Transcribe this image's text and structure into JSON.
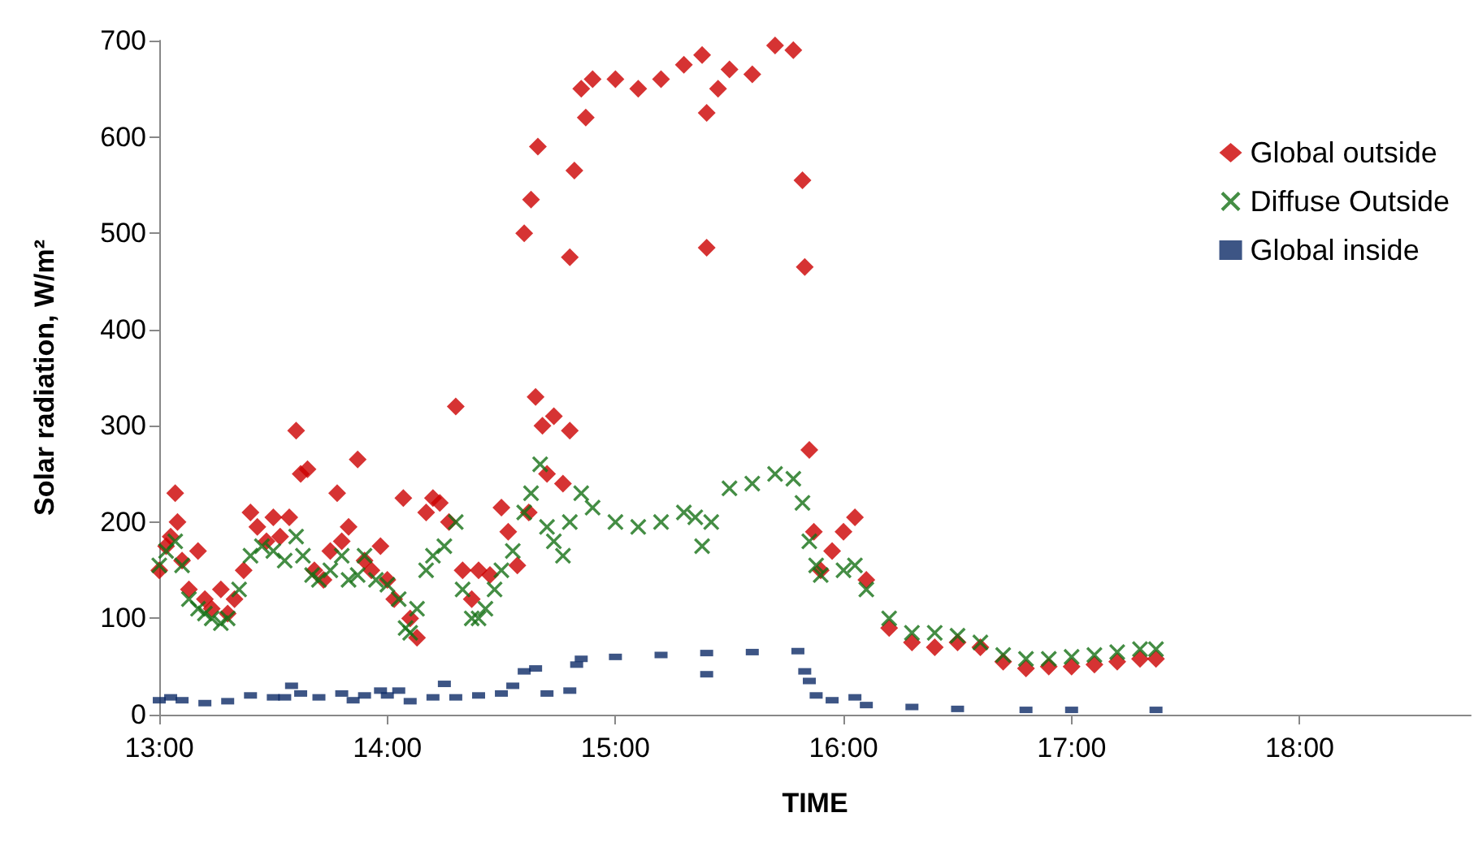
{
  "chart_data": {
    "type": "scatter",
    "xlabel": "TIME",
    "ylabel": "Solar radiation, W/m²",
    "xlim": [
      13,
      18.75
    ],
    "xticks": [
      {
        "value": 13,
        "label": "13:00"
      },
      {
        "value": 14,
        "label": "14:00"
      },
      {
        "value": 15,
        "label": "15:00"
      },
      {
        "value": 16,
        "label": "16:00"
      },
      {
        "value": 17,
        "label": "17:00"
      },
      {
        "value": 18,
        "label": "18:00"
      }
    ],
    "ylim": [
      0,
      700
    ],
    "yticks": [
      0,
      100,
      200,
      300,
      400,
      500,
      600,
      700
    ],
    "grid": false,
    "legend": "right",
    "series": [
      {
        "name": "Global outside",
        "color": "#cc0000",
        "marker": "diamond",
        "x": [
          13.0,
          13.03,
          13.05,
          13.07,
          13.08,
          13.1,
          13.13,
          13.17,
          13.2,
          13.23,
          13.27,
          13.3,
          13.33,
          13.37,
          13.4,
          13.43,
          13.47,
          13.5,
          13.53,
          13.57,
          13.6,
          13.62,
          13.65,
          13.68,
          13.72,
          13.75,
          13.78,
          13.8,
          13.83,
          13.87,
          13.9,
          13.93,
          13.97,
          14.0,
          14.03,
          14.07,
          14.1,
          14.13,
          14.17,
          14.2,
          14.23,
          14.27,
          14.3,
          14.33,
          14.37,
          14.4,
          14.45,
          14.5,
          14.53,
          14.57,
          14.6,
          14.62,
          14.63,
          14.65,
          14.66,
          14.68,
          14.7,
          14.73,
          14.77,
          14.8,
          14.8,
          14.82,
          14.85,
          14.87,
          14.9,
          15.0,
          15.1,
          15.2,
          15.3,
          15.38,
          15.4,
          15.4,
          15.45,
          15.5,
          15.6,
          15.7,
          15.78,
          15.82,
          15.83,
          15.85,
          15.87,
          15.9,
          15.95,
          16.0,
          16.05,
          16.1,
          16.2,
          16.3,
          16.4,
          16.5,
          16.6,
          16.7,
          16.8,
          16.9,
          17.0,
          17.1,
          17.2,
          17.3,
          17.37
        ],
        "values": [
          150,
          175,
          185,
          230,
          200,
          160,
          130,
          170,
          120,
          110,
          130,
          105,
          120,
          150,
          210,
          195,
          180,
          205,
          185,
          205,
          295,
          250,
          255,
          150,
          140,
          170,
          230,
          180,
          195,
          265,
          160,
          150,
          175,
          140,
          120,
          225,
          100,
          80,
          210,
          225,
          220,
          200,
          320,
          150,
          120,
          150,
          145,
          215,
          190,
          155,
          500,
          210,
          535,
          330,
          590,
          300,
          250,
          310,
          240,
          295,
          475,
          565,
          650,
          620,
          660,
          660,
          650,
          660,
          675,
          685,
          625,
          485,
          650,
          670,
          665,
          695,
          690,
          555,
          465,
          275,
          190,
          150,
          170,
          190,
          205,
          140,
          90,
          75,
          70,
          75,
          70,
          55,
          48,
          50,
          50,
          52,
          55,
          58,
          58
        ]
      },
      {
        "name": "Diffuse Outside",
        "color": "#157015",
        "marker": "cross",
        "x": [
          13.0,
          13.03,
          13.07,
          13.1,
          13.13,
          13.17,
          13.2,
          13.23,
          13.27,
          13.3,
          13.35,
          13.4,
          13.45,
          13.5,
          13.55,
          13.6,
          13.63,
          13.67,
          13.7,
          13.75,
          13.8,
          13.83,
          13.87,
          13.9,
          13.95,
          14.0,
          14.05,
          14.08,
          14.1,
          14.13,
          14.17,
          14.2,
          14.25,
          14.3,
          14.33,
          14.37,
          14.4,
          14.43,
          14.47,
          14.5,
          14.55,
          14.6,
          14.63,
          14.67,
          14.7,
          14.73,
          14.77,
          14.8,
          14.85,
          14.9,
          15.0,
          15.1,
          15.2,
          15.3,
          15.35,
          15.38,
          15.42,
          15.5,
          15.6,
          15.7,
          15.78,
          15.82,
          15.85,
          15.88,
          15.9,
          16.0,
          16.05,
          16.1,
          16.2,
          16.3,
          16.4,
          16.5,
          16.6,
          16.7,
          16.8,
          16.9,
          17.0,
          17.1,
          17.2,
          17.3,
          17.37
        ],
        "values": [
          155,
          170,
          180,
          155,
          120,
          110,
          105,
          100,
          95,
          100,
          130,
          165,
          175,
          170,
          160,
          185,
          165,
          145,
          140,
          150,
          165,
          140,
          145,
          165,
          140,
          135,
          120,
          90,
          85,
          110,
          150,
          165,
          175,
          200,
          130,
          100,
          100,
          110,
          130,
          150,
          170,
          210,
          230,
          260,
          195,
          180,
          165,
          200,
          230,
          215,
          200,
          195,
          200,
          210,
          205,
          175,
          200,
          235,
          240,
          250,
          245,
          220,
          180,
          155,
          145,
          150,
          155,
          130,
          100,
          85,
          85,
          82,
          75,
          62,
          58,
          58,
          60,
          62,
          65,
          68,
          68
        ]
      },
      {
        "name": "Global inside",
        "color": "#0d2a66",
        "marker": "square",
        "x": [
          13.0,
          13.05,
          13.1,
          13.2,
          13.3,
          13.4,
          13.5,
          13.55,
          13.58,
          13.62,
          13.7,
          13.8,
          13.85,
          13.9,
          13.97,
          14.0,
          14.05,
          14.1,
          14.2,
          14.25,
          14.3,
          14.4,
          14.5,
          14.55,
          14.6,
          14.65,
          14.7,
          14.8,
          14.83,
          14.85,
          15.0,
          15.2,
          15.4,
          15.4,
          15.6,
          15.8,
          15.83,
          15.85,
          15.88,
          15.95,
          16.05,
          16.1,
          16.3,
          16.5,
          16.8,
          17.0,
          17.37
        ],
        "values": [
          15,
          18,
          15,
          12,
          14,
          20,
          18,
          18,
          30,
          22,
          18,
          22,
          15,
          20,
          25,
          20,
          25,
          14,
          18,
          32,
          18,
          20,
          22,
          30,
          45,
          48,
          22,
          25,
          52,
          58,
          60,
          62,
          64,
          42,
          65,
          66,
          45,
          35,
          20,
          15,
          18,
          10,
          8,
          6,
          5,
          5,
          5
        ]
      }
    ]
  }
}
